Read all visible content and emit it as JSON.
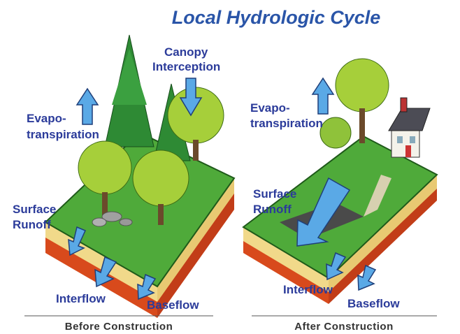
{
  "title": "Local Hydrologic Cycle",
  "panels": [
    {
      "caption": "Before Construction",
      "labels": [
        {
          "lines": [
            "Canopy",
            "Interception"
          ]
        },
        {
          "lines": [
            "Evapo-",
            "transpiration"
          ]
        },
        {
          "lines": [
            "Surface",
            "Runoff"
          ]
        },
        {
          "lines": [
            "Interflow"
          ]
        },
        {
          "lines": [
            "Baseflow"
          ]
        }
      ]
    },
    {
      "caption": "After Construction",
      "labels": [
        {
          "lines": [
            "Evapo-",
            "transpiration"
          ]
        },
        {
          "lines": [
            "Surface",
            "Runoff"
          ]
        },
        {
          "lines": [
            "Interflow"
          ]
        },
        {
          "lines": [
            "Baseflow"
          ]
        }
      ]
    }
  ]
}
